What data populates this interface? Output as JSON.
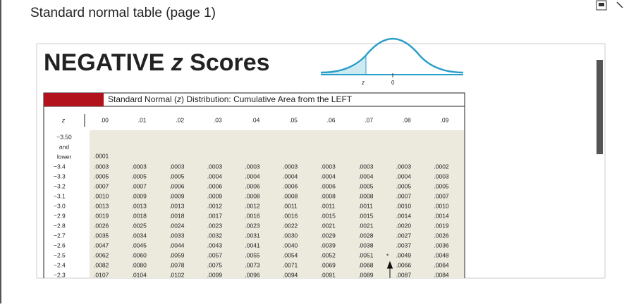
{
  "page_title": "Standard normal table (page 1)",
  "heading": {
    "before": "NEGATIVE ",
    "z": "z",
    "after": " Scores"
  },
  "curve_labels": {
    "z": "z",
    "zero": "0"
  },
  "caption": {
    "before": "Standard Normal (",
    "z": "z",
    "after": ") Distribution: Cumulative Area from the LEFT"
  },
  "table": {
    "header": [
      "z",
      ".00",
      ".01",
      ".02",
      ".03",
      ".04",
      ".05",
      ".06",
      ".07",
      ".08",
      ".09"
    ],
    "rows": [
      {
        "z": [
          "−3.50",
          "and",
          "lower"
        ],
        "values": [
          ".0001"
        ]
      },
      {
        "z": "−3.4",
        "values": [
          ".0003",
          ".0003",
          ".0003",
          ".0003",
          ".0003",
          ".0003",
          ".0003",
          ".0003",
          ".0003",
          ".0002"
        ]
      },
      {
        "z": "−3.3",
        "values": [
          ".0005",
          ".0005",
          ".0005",
          ".0004",
          ".0004",
          ".0004",
          ".0004",
          ".0004",
          ".0004",
          ".0003"
        ]
      },
      {
        "z": "−3.2",
        "values": [
          ".0007",
          ".0007",
          ".0006",
          ".0006",
          ".0006",
          ".0006",
          ".0006",
          ".0005",
          ".0005",
          ".0005"
        ]
      },
      {
        "z": "−3.1",
        "values": [
          ".0010",
          ".0009",
          ".0009",
          ".0009",
          ".0008",
          ".0008",
          ".0008",
          ".0008",
          ".0007",
          ".0007"
        ]
      },
      {
        "z": "−3.0",
        "values": [
          ".0013",
          ".0013",
          ".0013",
          ".0012",
          ".0012",
          ".0011",
          ".0011",
          ".0011",
          ".0010",
          ".0010"
        ]
      },
      {
        "z": "−2.9",
        "values": [
          ".0019",
          ".0018",
          ".0018",
          ".0017",
          ".0016",
          ".0016",
          ".0015",
          ".0015",
          ".0014",
          ".0014"
        ]
      },
      {
        "z": "−2.8",
        "values": [
          ".0026",
          ".0025",
          ".0024",
          ".0023",
          ".0023",
          ".0022",
          ".0021",
          ".0021",
          ".0020",
          ".0019"
        ]
      },
      {
        "z": "−2.7",
        "values": [
          ".0035",
          ".0034",
          ".0033",
          ".0032",
          ".0031",
          ".0030",
          ".0029",
          ".0028",
          ".0027",
          ".0026"
        ]
      },
      {
        "z": "−2.6",
        "values": [
          ".0047",
          ".0045",
          ".0044",
          ".0043",
          ".0041",
          ".0040",
          ".0039",
          ".0038",
          ".0037",
          ".0036"
        ]
      },
      {
        "z": "−2.5",
        "values": [
          ".0062",
          ".0060",
          ".0059",
          ".0057",
          ".0055",
          ".0054",
          ".0052",
          ".0051",
          ".0049",
          ".0048"
        ],
        "marker": "*"
      },
      {
        "z": "−2.4",
        "values": [
          ".0082",
          ".0080",
          ".0078",
          ".0075",
          ".0073",
          ".0071",
          ".0069",
          ".0068",
          ".0066",
          ".0064"
        ]
      },
      {
        "z": "−2.3",
        "values": [
          ".0107",
          ".0104",
          ".0102",
          ".0099",
          ".0096",
          ".0094",
          ".0091",
          ".0089",
          ".0087",
          ".0084"
        ]
      }
    ]
  }
}
